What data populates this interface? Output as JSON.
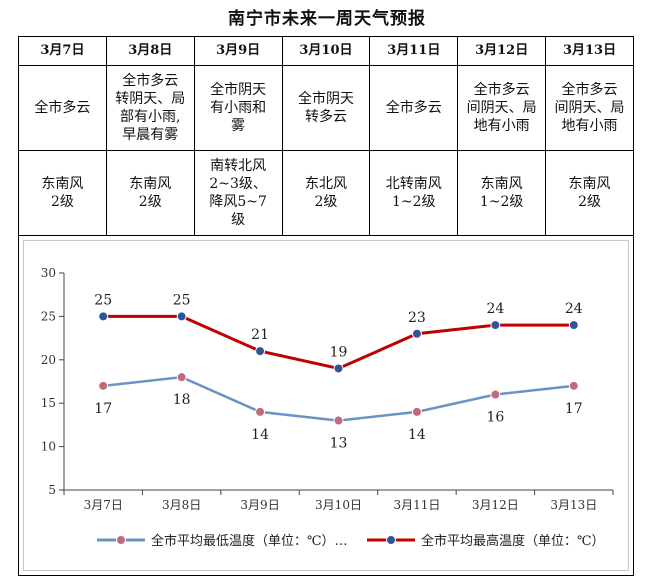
{
  "title": "南宁市未来一周天气预报",
  "forecast": [
    {
      "date": "3月7日",
      "weather": "全市多云",
      "wind": "东南风\n2级"
    },
    {
      "date": "3月8日",
      "weather": "全市多云\n转阴天、局\n部有小雨,\n早晨有雾",
      "wind": "东南风\n2级"
    },
    {
      "date": "3月9日",
      "weather": "全市阴天\n有小雨和\n雾",
      "wind": "南转北风\n2~3级、\n降风5~7\n级"
    },
    {
      "date": "3月10日",
      "weather": "全市阴天\n转多云",
      "wind": "东北风\n2级"
    },
    {
      "date": "3月11日",
      "weather": "全市多云",
      "wind": "北转南风\n1~2级"
    },
    {
      "date": "3月12日",
      "weather": "全市多云\n间阴天、局\n地有小雨",
      "wind": "东南风\n1~2级"
    },
    {
      "date": "3月13日",
      "weather": "全市多云\n间阴天、局\n地有小雨",
      "wind": "东南风\n2级"
    }
  ],
  "chart_data": {
    "type": "line",
    "categories": [
      "3月7日",
      "3月8日",
      "3月9日",
      "3月10日",
      "3月11日",
      "3月12日",
      "3月13日"
    ],
    "series": [
      {
        "name": "全市平均最低温度（单位：℃）…",
        "values": [
          17,
          18,
          14,
          13,
          14,
          16,
          17
        ],
        "color": "#6b93c1",
        "marker": "#c06a7e"
      },
      {
        "name": "全市平均最高温度（单位：℃）",
        "values": [
          25,
          25,
          21,
          19,
          23,
          24,
          24
        ],
        "color": "#c00000",
        "marker": "#2f5597"
      }
    ],
    "yticks": [
      5,
      10,
      15,
      20,
      25,
      30
    ],
    "ylim": [
      5,
      30
    ],
    "legend": "bottom"
  }
}
